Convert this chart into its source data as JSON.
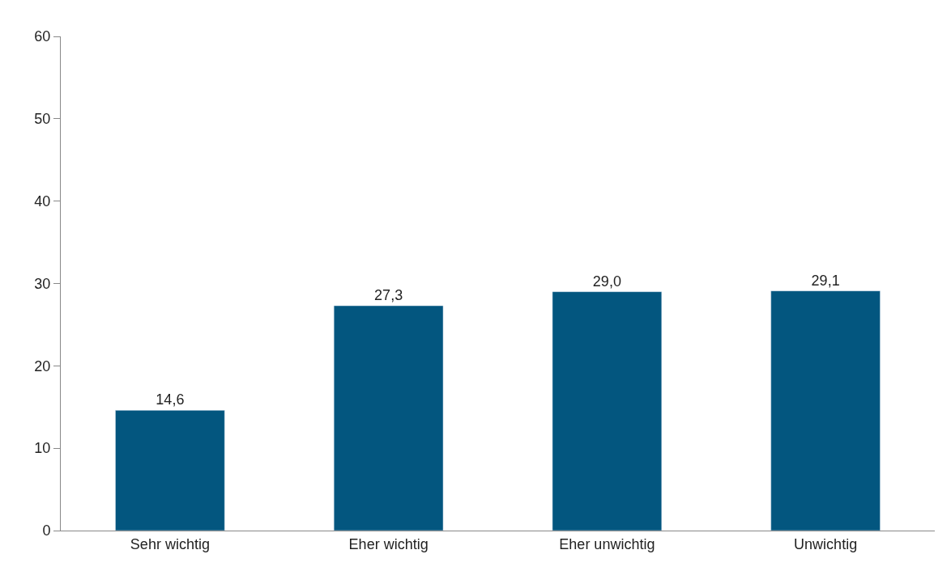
{
  "chart_data": {
    "type": "bar",
    "categories": [
      "Sehr wichtig",
      "Eher wichtig",
      "Eher unwichtig",
      "Unwichtig"
    ],
    "values": [
      14.6,
      27.3,
      29.0,
      29.1
    ],
    "value_labels": [
      "14,6",
      "27,3",
      "29,0",
      "29,1"
    ],
    "color": "#03567f",
    "ylim": [
      0,
      60
    ],
    "yticks": [
      0,
      10,
      20,
      30,
      40,
      50,
      60
    ],
    "legend": false
  }
}
